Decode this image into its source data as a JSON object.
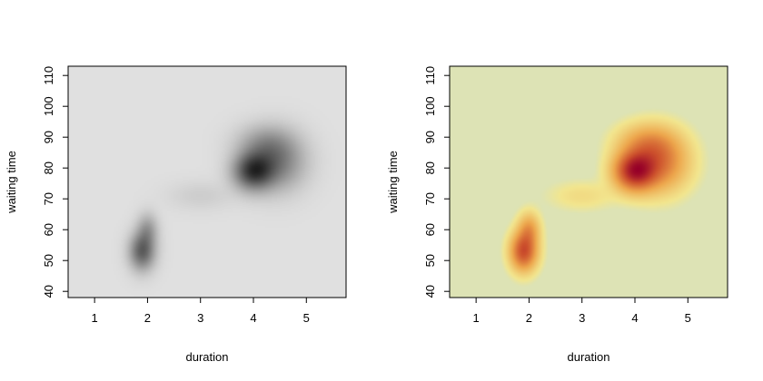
{
  "chart_data": [
    {
      "type": "heatmap",
      "title": "",
      "xlabel": "duration",
      "ylabel": "waiting time",
      "xlim": [
        0.5,
        5.75
      ],
      "ylim": [
        38,
        113
      ],
      "x_ticks": [
        1,
        2,
        3,
        4,
        5
      ],
      "y_ticks": [
        40,
        50,
        60,
        70,
        80,
        90,
        100,
        110
      ],
      "x_tick_labels": [
        "1",
        "2",
        "3",
        "4",
        "5"
      ],
      "y_tick_labels": [
        "40",
        "50",
        "60",
        "70",
        "80",
        "90",
        "100",
        "110"
      ],
      "grid": false,
      "color_scale": "grey",
      "colors": {
        "background": "#e0e0e0",
        "peak": "#1e1e1e"
      },
      "density_modes": [
        {
          "x": 1.9,
          "y": 53,
          "sx": 0.16,
          "sy": 4.0,
          "weight": 0.78
        },
        {
          "x": 2.0,
          "y": 60,
          "sx": 0.13,
          "sy": 3.5,
          "weight": 0.35
        },
        {
          "x": 4.0,
          "y": 79,
          "sx": 0.25,
          "sy": 4.0,
          "weight": 1.0
        },
        {
          "x": 4.45,
          "y": 82,
          "sx": 0.35,
          "sy": 6.0,
          "weight": 0.55
        },
        {
          "x": 4.2,
          "y": 88,
          "sx": 0.35,
          "sy": 4.0,
          "weight": 0.28
        },
        {
          "x": 3.0,
          "y": 71,
          "sx": 0.4,
          "sy": 3.0,
          "weight": 0.08
        }
      ]
    },
    {
      "type": "heatmap",
      "title": "",
      "xlabel": "duration",
      "ylabel": "waiting time",
      "xlim": [
        0.5,
        5.75
      ],
      "ylim": [
        38,
        113
      ],
      "x_ticks": [
        1,
        2,
        3,
        4,
        5
      ],
      "y_ticks": [
        40,
        50,
        60,
        70,
        80,
        90,
        100,
        110
      ],
      "x_tick_labels": [
        "1",
        "2",
        "3",
        "4",
        "5"
      ],
      "y_tick_labels": [
        "40",
        "50",
        "60",
        "70",
        "80",
        "90",
        "100",
        "110"
      ],
      "grid": false,
      "color_scale": "yellow-orange-red",
      "colors": {
        "background": "#dde3b5",
        "light": "#f2e68f",
        "mid": "#eda64c",
        "high": "#cc4f2c",
        "peak": "#960028"
      },
      "density_modes": [
        {
          "x": 1.9,
          "y": 53,
          "sx": 0.16,
          "sy": 4.0,
          "weight": 0.78
        },
        {
          "x": 2.0,
          "y": 60,
          "sx": 0.13,
          "sy": 3.5,
          "weight": 0.35
        },
        {
          "x": 4.0,
          "y": 79,
          "sx": 0.25,
          "sy": 4.0,
          "weight": 1.0
        },
        {
          "x": 4.45,
          "y": 82,
          "sx": 0.35,
          "sy": 6.0,
          "weight": 0.55
        },
        {
          "x": 4.2,
          "y": 88,
          "sx": 0.35,
          "sy": 4.0,
          "weight": 0.28
        },
        {
          "x": 3.0,
          "y": 71,
          "sx": 0.4,
          "sy": 3.0,
          "weight": 0.08
        }
      ]
    }
  ]
}
